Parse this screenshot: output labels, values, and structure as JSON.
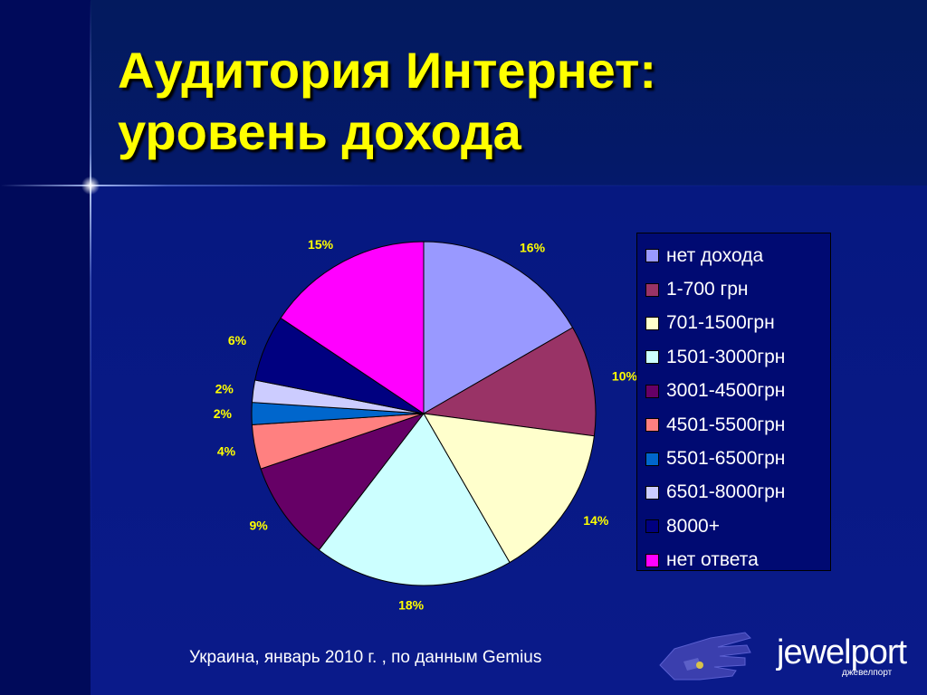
{
  "slide": {
    "title_line1": "Аудитория Интернет:",
    "title_line2": "уровень дохода",
    "source": "Украина, январь 2010 г. , по данным  Gemius",
    "logo_text": "jewelport",
    "logo_subtext": "джевелпорт"
  },
  "chart_data": {
    "type": "pie",
    "title": "",
    "legend_position": "right",
    "slices": [
      {
        "label": "нет дохода",
        "value": 16,
        "value_label": "16%",
        "color": "#9999ff"
      },
      {
        "label": "1-700 грн",
        "value": 10,
        "value_label": "10%",
        "color": "#993366"
      },
      {
        "label": "701-1500грн",
        "value": 14,
        "value_label": "14%",
        "color": "#ffffcc"
      },
      {
        "label": "1501-3000грн",
        "value": 18,
        "value_label": "18%",
        "color": "#ccffff"
      },
      {
        "label": "3001-4500грн",
        "value": 9,
        "value_label": "9%",
        "color": "#660066"
      },
      {
        "label": "4501-5500грн",
        "value": 4,
        "value_label": "4%",
        "color": "#ff8080"
      },
      {
        "label": "5501-6500грн",
        "value": 2,
        "value_label": "2%",
        "color": "#0066cc"
      },
      {
        "label": "6501-8000грн",
        "value": 2,
        "value_label": "2%",
        "color": "#ccccff"
      },
      {
        "label": "8000+",
        "value": 6,
        "value_label": "6%",
        "color": "#000080"
      },
      {
        "label": "нет ответа",
        "value": 15,
        "value_label": "15%",
        "color": "#ff00ff"
      }
    ]
  }
}
